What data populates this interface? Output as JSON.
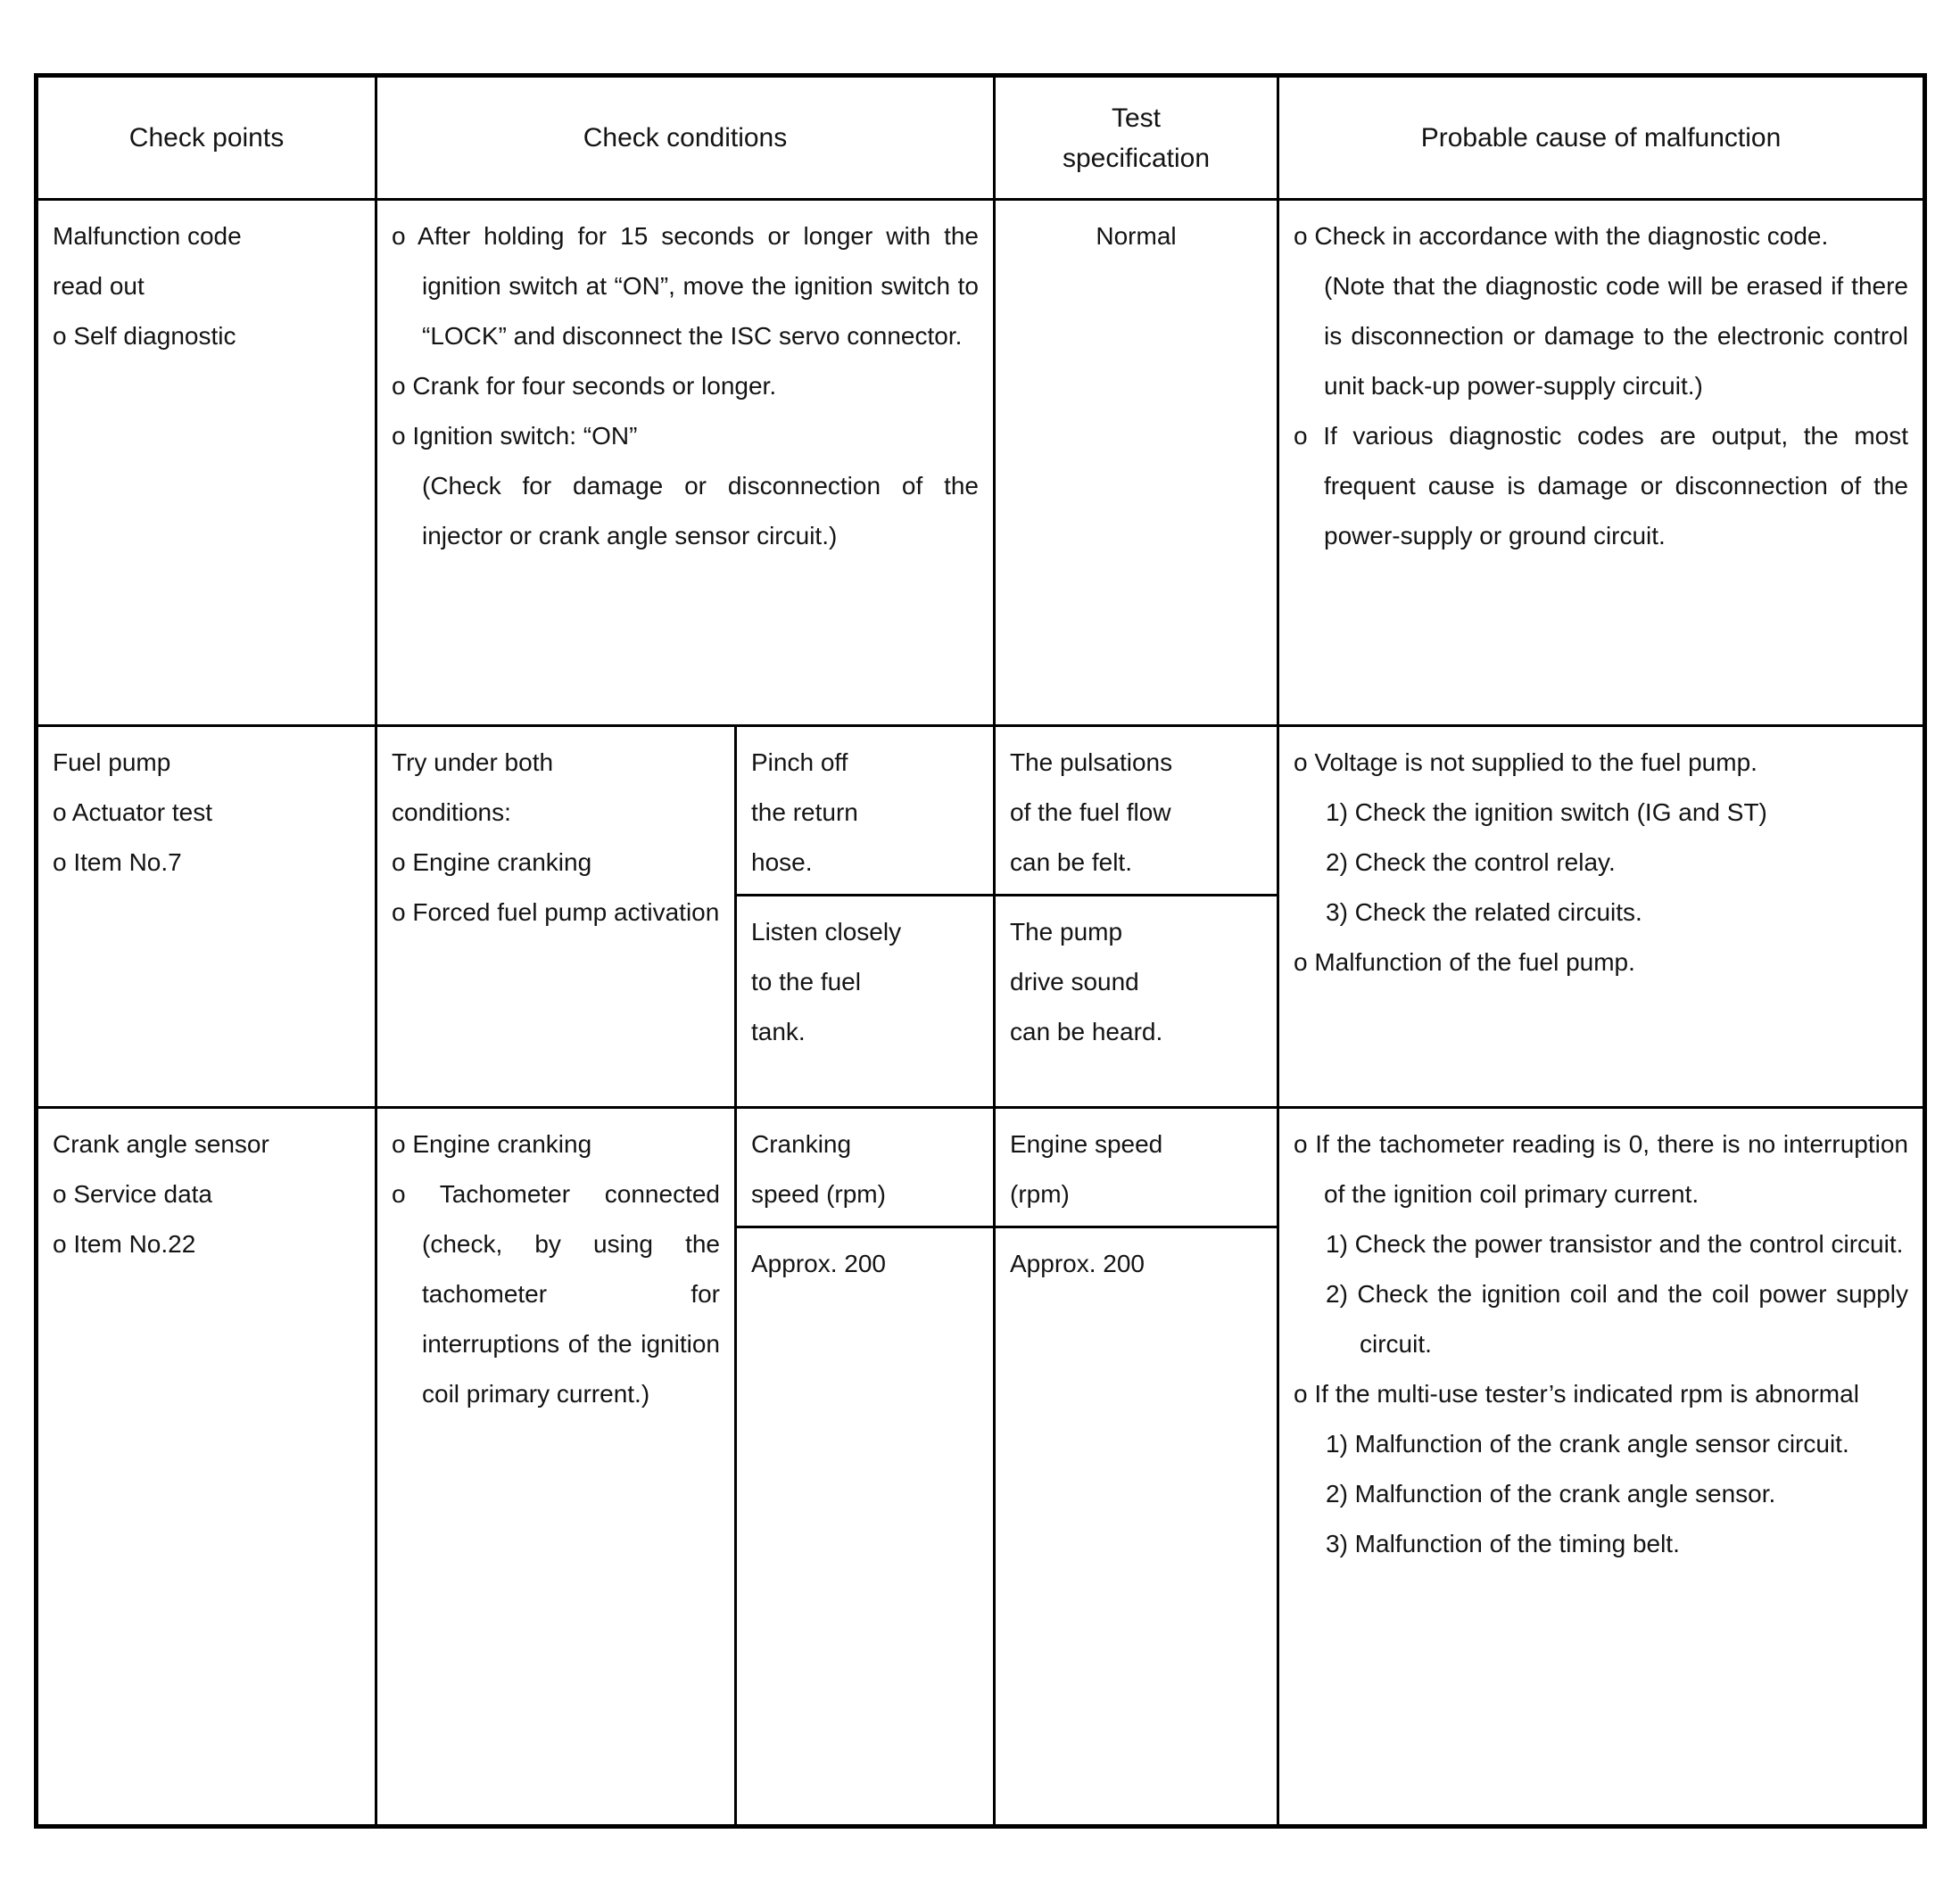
{
  "header": {
    "check_points": "Check points",
    "check_conditions": "Check conditions",
    "test_specification": "Test\nspecification",
    "probable_cause": "Probable cause of malfunction"
  },
  "rows": [
    {
      "check_points": [
        "Malfunction code",
        "read out",
        "o Self diagnostic"
      ],
      "conditions": [
        "o After holding for 15 seconds or longer with the ignition switch at “ON”, move the ignition switch to “LOCK” and disconnect the ISC servo connector.",
        "o Crank for four seconds or longer.",
        "o Ignition switch: “ON”",
        "(Check for damage or disconnection of the injector or crank angle sensor circuit.)"
      ],
      "specification": "Normal",
      "causes": [
        "o Check in accordance with the diagnostic code.",
        "(Note that the diagnostic code will be erased if there is disconnection or damage to the electronic control unit back-up power-supply circuit.)",
        "o If various diagnostic codes are output, the most frequent cause is damage or disconnection of the power-supply or ground circuit."
      ]
    },
    {
      "check_points": [
        "Fuel pump",
        "o Actuator test",
        "o Item No.7"
      ],
      "conditions_main": [
        "Try under both\nconditions:",
        "o Engine cranking",
        "o Forced fuel pump activation"
      ],
      "conditions_sub": [
        "Pinch off\nthe return\nhose.",
        "Listen closely\nto the fuel\ntank."
      ],
      "specification": [
        "The pulsations\nof the fuel flow\ncan be felt.",
        "The pump\ndrive sound\ncan be heard."
      ],
      "causes": [
        "o Voltage is not supplied to the fuel pump.",
        "1) Check the ignition switch (IG and ST)",
        "2) Check the control relay.",
        "3) Check the related circuits.",
        "o Malfunction of the fuel pump."
      ]
    },
    {
      "check_points": [
        "Crank angle sensor",
        "o Service data",
        "o Item No.22"
      ],
      "conditions_main": [
        "o Engine cranking",
        "o Tachometer connected (check, by using the tachometer for interruptions of the ignition coil primary current.)"
      ],
      "conditions_sub": [
        "Cranking\nspeed (rpm)",
        "Approx. 200"
      ],
      "specification": [
        "Engine speed\n(rpm)",
        "Approx. 200"
      ],
      "causes": [
        "o If the tachometer reading is 0, there is no interruption of the ignition coil primary current.",
        "1) Check the power transistor and the control circuit.",
        "2) Check the ignition coil and the coil power supply circuit.",
        "o If the multi-use tester’s indicated rpm is abnormal",
        "1) Malfunction of the crank angle sensor circuit.",
        "2) Malfunction of the crank angle sensor.",
        "3) Malfunction of the timing belt."
      ]
    }
  ]
}
